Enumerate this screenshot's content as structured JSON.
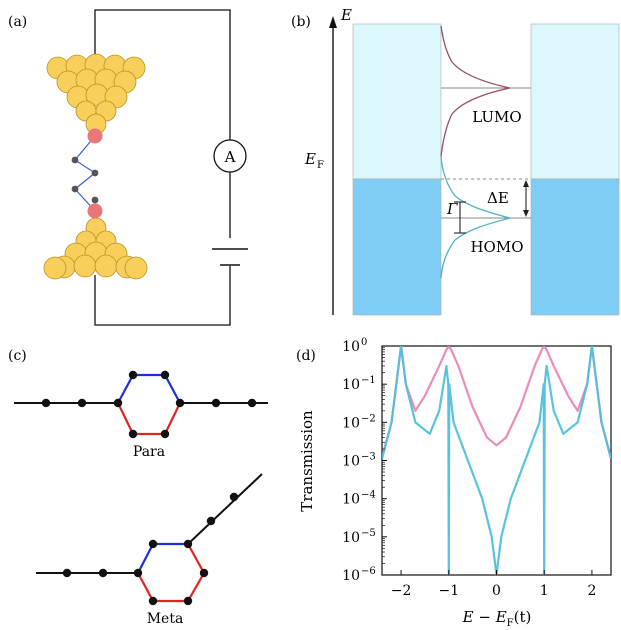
{
  "panels": {
    "a": {
      "label": "(a)",
      "ammeter": "A"
    },
    "b": {
      "label": "(b)",
      "energy_axis": "E",
      "fermi_main": "E",
      "fermi_sub": "F",
      "lumo": "LUMO",
      "homo": "HOMO",
      "gamma": "Γ",
      "delta_e": "ΔE"
    },
    "c": {
      "label": "(c)",
      "para": "Para",
      "meta": "Meta"
    },
    "d": {
      "label": "(d)"
    }
  },
  "colors": {
    "gold": "#f8cf5a",
    "gold_edge": "#b8922a",
    "contact": "#e8777a",
    "lead_light": "#dcf8fc",
    "lead_dark": "#7fcdf5",
    "bond_blue": "#1d2fd8",
    "bond_red": "#e02424",
    "curve_pink": "#ea7fb0",
    "curve_cyan": "#4fbfdf"
  },
  "chart_data": {
    "type": "line",
    "title": "",
    "ylabel": "Transmission",
    "xlabel_main": "E − E",
    "xlabel_sub": "F",
    "xlabel_tail": "(t)",
    "xlim": [
      -2.4,
      2.4
    ],
    "ylim": [
      1e-06,
      1.0
    ],
    "yscale": "log",
    "x_ticks": [
      "−2",
      "−1",
      "0",
      "1",
      "2"
    ],
    "x_tick_values": [
      -2,
      -1,
      0,
      1,
      2
    ],
    "y_ticks": [
      "10^0",
      "10^-1",
      "10^-2",
      "10^-3",
      "10^-4",
      "10^-5",
      "10^-6"
    ],
    "y_tick_exps": [
      0,
      -1,
      -2,
      -3,
      -4,
      -5,
      -6
    ],
    "series": [
      {
        "color": "pink",
        "x": [
          -2.4,
          -2.2,
          -2.1,
          -2.0,
          -1.9,
          -1.7,
          -1.5,
          -1.2,
          -1.05,
          -1.0,
          -0.95,
          -0.8,
          -0.5,
          -0.2,
          0.0,
          0.2,
          0.5,
          0.8,
          0.95,
          1.0,
          1.05,
          1.2,
          1.5,
          1.7,
          1.9,
          2.0,
          2.1,
          2.2,
          2.4
        ],
        "y": [
          0.0012,
          0.01,
          0.1,
          1.0,
          0.1,
          0.02,
          0.05,
          0.3,
          0.8,
          1.0,
          0.8,
          0.3,
          0.025,
          0.004,
          0.0025,
          0.004,
          0.025,
          0.3,
          0.8,
          1.0,
          0.8,
          0.3,
          0.05,
          0.02,
          0.1,
          1.0,
          0.1,
          0.01,
          0.0012
        ]
      },
      {
        "color": "cyan",
        "x": [
          -2.4,
          -2.2,
          -2.1,
          -2.0,
          -1.9,
          -1.7,
          -1.4,
          -1.2,
          -1.05,
          -1.01,
          -1.0,
          -0.99,
          -0.9,
          -0.6,
          -0.3,
          -0.1,
          -0.03,
          0.0,
          0.03,
          0.1,
          0.3,
          0.6,
          0.9,
          0.99,
          1.0,
          1.01,
          1.05,
          1.2,
          1.4,
          1.7,
          1.9,
          2.0,
          2.1,
          2.2,
          2.4
        ],
        "y": [
          0.0011,
          0.01,
          0.1,
          1.0,
          0.1,
          0.01,
          0.005,
          0.02,
          0.3,
          0.1,
          1e-06,
          0.1,
          0.01,
          0.001,
          0.0001,
          1e-05,
          2e-06,
          1e-06,
          2e-06,
          1e-05,
          0.0001,
          0.001,
          0.01,
          0.1,
          1e-06,
          0.1,
          0.3,
          0.02,
          0.005,
          0.01,
          0.1,
          1.0,
          0.1,
          0.01,
          0.0011
        ]
      }
    ]
  }
}
